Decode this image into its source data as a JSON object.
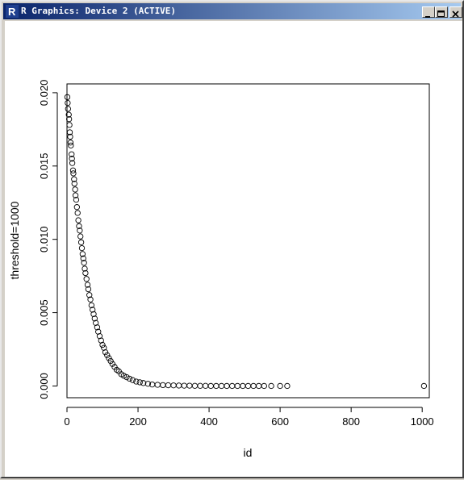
{
  "window": {
    "title": "R Graphics: Device 2 (ACTIVE)",
    "app_icon": "r-logo-icon",
    "controls": [
      "minimize-icon",
      "maximize-icon",
      "close-icon"
    ]
  },
  "chart_data": {
    "type": "scatter",
    "title": "",
    "xlabel": "id",
    "ylabel": "threshold=1000",
    "xlim": [
      0,
      1020
    ],
    "ylim": [
      -0.0008,
      0.0206
    ],
    "xticks": [
      0,
      200,
      400,
      600,
      800,
      1000
    ],
    "yticks": [
      0.0,
      0.005,
      0.01,
      0.015,
      0.02
    ],
    "ytick_labels": [
      "0.000",
      "0.005",
      "0.010",
      "0.015",
      "0.020"
    ],
    "grid": false,
    "marker": "open-circle",
    "series": [
      {
        "description_of_shape": "exponential decay",
        "points": [
          [
            1,
            0.0197
          ],
          [
            2,
            0.0193
          ],
          [
            3,
            0.0189
          ],
          [
            5,
            0.0185
          ],
          [
            6,
            0.0182
          ],
          [
            7,
            0.0178
          ],
          [
            8,
            0.0173
          ],
          [
            9,
            0.017
          ],
          [
            10,
            0.0166
          ],
          [
            11,
            0.0164
          ],
          [
            13,
            0.0158
          ],
          [
            14,
            0.0155
          ],
          [
            15,
            0.0152
          ],
          [
            17,
            0.0147
          ],
          [
            18,
            0.0145
          ],
          [
            20,
            0.0141
          ],
          [
            21,
            0.0138
          ],
          [
            23,
            0.0134
          ],
          [
            24,
            0.013
          ],
          [
            26,
            0.0127
          ],
          [
            28,
            0.0122
          ],
          [
            30,
            0.0118
          ],
          [
            32,
            0.0113
          ],
          [
            34,
            0.0109
          ],
          [
            36,
            0.0106
          ],
          [
            38,
            0.0102
          ],
          [
            40,
            0.0098
          ],
          [
            42,
            0.0094
          ],
          [
            44,
            0.009
          ],
          [
            46,
            0.0087
          ],
          [
            48,
            0.0084
          ],
          [
            50,
            0.008
          ],
          [
            52,
            0.0077
          ],
          [
            55,
            0.0073
          ],
          [
            58,
            0.0069
          ],
          [
            60,
            0.0066
          ],
          [
            63,
            0.0062
          ],
          [
            66,
            0.0059
          ],
          [
            69,
            0.0055
          ],
          [
            72,
            0.0052
          ],
          [
            75,
            0.0049
          ],
          [
            78,
            0.0046
          ],
          [
            81,
            0.0043
          ],
          [
            85,
            0.004
          ],
          [
            88,
            0.0037
          ],
          [
            92,
            0.0034
          ],
          [
            96,
            0.0031
          ],
          [
            100,
            0.0028
          ],
          [
            104,
            0.0026
          ],
          [
            108,
            0.0023
          ],
          [
            113,
            0.0021
          ],
          [
            118,
            0.0019
          ],
          [
            123,
            0.0017
          ],
          [
            128,
            0.0015
          ],
          [
            134,
            0.0013
          ],
          [
            140,
            0.0011
          ],
          [
            146,
            0.001
          ],
          [
            153,
            0.0008
          ],
          [
            160,
            0.0007
          ],
          [
            168,
            0.0006
          ],
          [
            176,
            0.0005
          ],
          [
            185,
            0.0004
          ],
          [
            195,
            0.0003
          ],
          [
            205,
            0.00025
          ],
          [
            215,
            0.0002
          ],
          [
            228,
            0.00015
          ],
          [
            240,
            0.0001
          ],
          [
            255,
            8e-05
          ],
          [
            270,
            6e-05
          ],
          [
            285,
            5e-05
          ],
          [
            300,
            4e-05
          ],
          [
            315,
            3e-05
          ],
          [
            330,
            2e-05
          ],
          [
            345,
            2e-05
          ],
          [
            360,
            1e-05
          ],
          [
            375,
            1e-05
          ],
          [
            390,
            1e-05
          ],
          [
            405,
            0.0
          ],
          [
            420,
            0.0
          ],
          [
            435,
            0.0
          ],
          [
            450,
            0.0
          ],
          [
            465,
            0.0
          ],
          [
            480,
            0.0
          ],
          [
            495,
            0.0
          ],
          [
            510,
            0.0
          ],
          [
            525,
            0.0
          ],
          [
            540,
            0.0
          ],
          [
            555,
            0.0
          ],
          [
            575,
            0.0
          ],
          [
            600,
            0.0
          ],
          [
            620,
            0.0
          ],
          [
            1005,
            0.0
          ]
        ]
      }
    ]
  }
}
